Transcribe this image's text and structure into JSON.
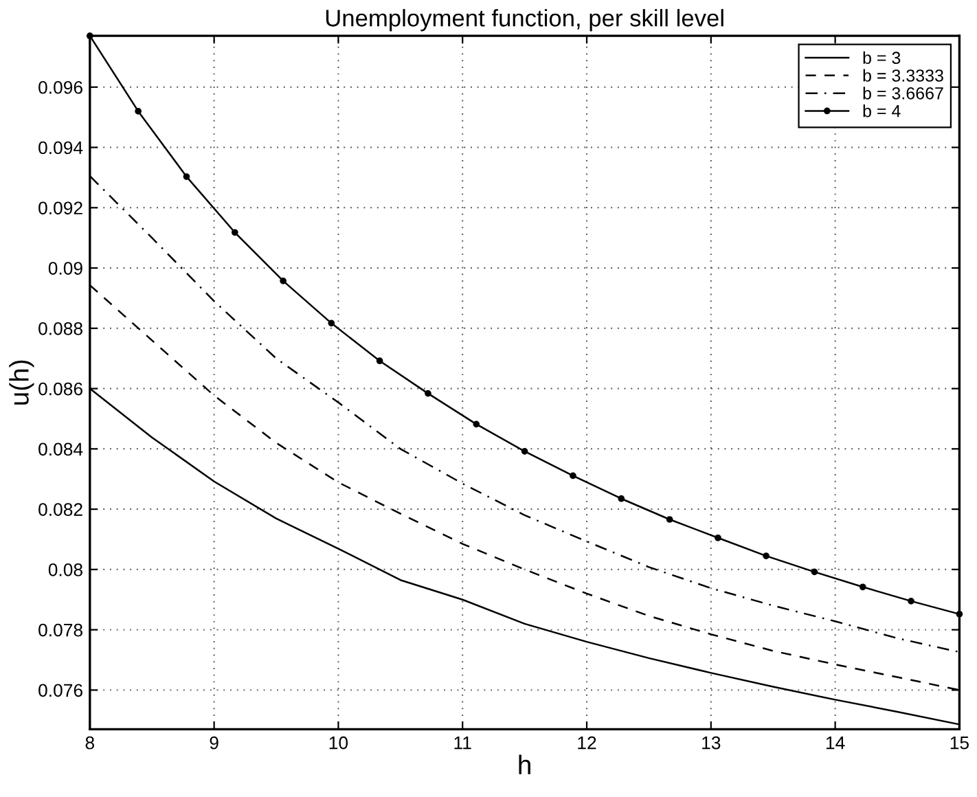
{
  "chart_data": {
    "type": "line",
    "title": "Unemployment function, per skill level",
    "xlabel": "h",
    "ylabel": "u(h)",
    "xlim": [
      8,
      15
    ],
    "xticks": [
      8,
      9,
      10,
      11,
      12,
      13,
      14,
      15
    ],
    "ylim": [
      0.0747,
      0.0977
    ],
    "yticks": [
      0.076,
      0.078,
      0.08,
      0.082,
      0.084,
      0.086,
      0.088,
      0.09,
      0.092,
      0.094,
      0.096
    ],
    "grid": true,
    "legend": "top right",
    "series": [
      {
        "name": "b = 3",
        "color": "#000000",
        "line_style": "solid",
        "marker": "none",
        "x": [
          8,
          8.5,
          9,
          9.5,
          10,
          10.5,
          11,
          11.5,
          12,
          12.5,
          13,
          13.5,
          14,
          14.5,
          15
        ],
        "values": [
          0.086,
          0.08438,
          0.08292,
          0.08169,
          0.08069,
          0.07965,
          0.079,
          0.0782,
          0.0776,
          0.07706,
          0.07657,
          0.07611,
          0.07568,
          0.07528,
          0.07486
        ]
      },
      {
        "name": "b = 3.3333",
        "color": "#000000",
        "line_style": "dashed",
        "marker": "none",
        "x": [
          8,
          9,
          9.5,
          10,
          10.5,
          11,
          11.5,
          12,
          12.5,
          13,
          13.5,
          14,
          14.5,
          15
        ],
        "values": [
          0.08943,
          0.08577,
          0.0842,
          0.08289,
          0.08185,
          0.08085,
          0.08,
          0.0792,
          0.07846,
          0.07785,
          0.0773,
          0.07685,
          0.07643,
          0.076
        ]
      },
      {
        "name": "b = 3.6667",
        "color": "#000000",
        "line_style": "dashdot",
        "marker": "none",
        "x": [
          8,
          8.5,
          9,
          9.5,
          10,
          10.5,
          11,
          11.5,
          12,
          12.5,
          13,
          13.5,
          14,
          14.5,
          15
        ],
        "values": [
          0.09305,
          0.091,
          0.0889,
          0.087,
          0.08554,
          0.084,
          0.08285,
          0.0818,
          0.08093,
          0.08008,
          0.07938,
          0.0788,
          0.07828,
          0.07772,
          0.07726
        ]
      },
      {
        "name": "b = 4",
        "color": "#000000",
        "line_style": "solid",
        "marker": "circle",
        "x": [
          8,
          8.389,
          8.778,
          9.167,
          9.556,
          9.944,
          10.333,
          10.722,
          11.111,
          11.5,
          11.889,
          12.278,
          12.667,
          13.056,
          13.444,
          13.833,
          14.222,
          14.611,
          15
        ],
        "values": [
          0.0977,
          0.0952,
          0.09303,
          0.09118,
          0.08957,
          0.08817,
          0.08692,
          0.08584,
          0.08482,
          0.08392,
          0.08311,
          0.08235,
          0.08166,
          0.08105,
          0.08045,
          0.07992,
          0.07942,
          0.07895,
          0.07852
        ]
      }
    ]
  }
}
